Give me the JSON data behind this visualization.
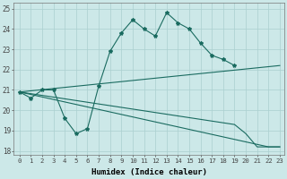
{
  "xlabel": "Humidex (Indice chaleur)",
  "bg_color": "#cce8e8",
  "line_color": "#1a6b60",
  "grid_color": "#aacfcf",
  "xlim": [
    -0.5,
    23.4
  ],
  "ylim": [
    17.8,
    25.3
  ],
  "xticks": [
    0,
    1,
    2,
    3,
    4,
    5,
    6,
    7,
    8,
    9,
    10,
    11,
    12,
    13,
    14,
    15,
    16,
    17,
    18,
    19,
    20,
    21,
    22,
    23
  ],
  "yticks": [
    18,
    19,
    20,
    21,
    22,
    23,
    24,
    25
  ],
  "line1_x": [
    0,
    1,
    2,
    3,
    4,
    5,
    6,
    7,
    8,
    9,
    10,
    11,
    12,
    13,
    14,
    15,
    16,
    17,
    18,
    19
  ],
  "line1_y": [
    20.9,
    20.6,
    21.0,
    21.0,
    19.6,
    18.85,
    19.1,
    21.2,
    22.9,
    23.8,
    24.45,
    24.0,
    23.65,
    24.8,
    24.3,
    24.0,
    23.3,
    22.7,
    22.5,
    22.2
  ],
  "line2_x": [
    0,
    23
  ],
  "line2_y": [
    20.9,
    22.2
  ],
  "line3_x": [
    0,
    22,
    23
  ],
  "line3_y": [
    20.9,
    18.2,
    18.2
  ],
  "line4_x": [
    0,
    19,
    20,
    21,
    22,
    23
  ],
  "line4_y": [
    20.9,
    19.3,
    18.85,
    18.2,
    18.2,
    18.2
  ]
}
